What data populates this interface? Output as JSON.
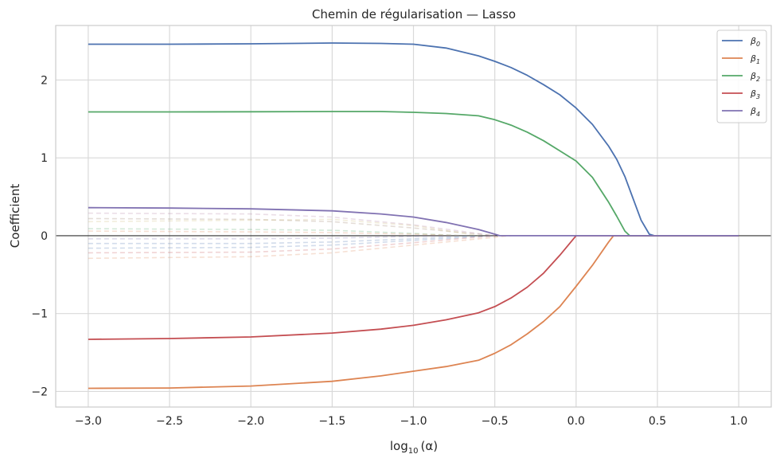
{
  "chart_data": {
    "type": "line",
    "title": "Chemin de régularisation — Lasso",
    "xlabel": "log",
    "xlabel_sub": "10",
    "xlabel_tail": "(α)",
    "ylabel": "Coefficient",
    "xlim": [
      -3.2,
      1.2
    ],
    "ylim": [
      -2.2,
      2.7
    ],
    "xticks": [
      -3.0,
      -2.5,
      -2.0,
      -1.5,
      -1.0,
      -0.5,
      0.0,
      0.5,
      1.0
    ],
    "xtick_labels": [
      "−3.0",
      "−2.5",
      "−2.0",
      "−1.5",
      "−1.0",
      "−0.5",
      "0.0",
      "0.5",
      "1.0"
    ],
    "yticks": [
      -2,
      -1,
      0,
      1,
      2
    ],
    "ytick_labels": [
      "−2",
      "−1",
      "0",
      "1",
      "2"
    ],
    "grid": true,
    "legend_position": "top-right",
    "zero_line": true,
    "series": [
      {
        "name": "β",
        "sub": "0",
        "color": "#4c72b0",
        "x": [
          -3.0,
          -2.5,
          -2.0,
          -1.5,
          -1.2,
          -1.0,
          -0.8,
          -0.6,
          -0.5,
          -0.4,
          -0.3,
          -0.2,
          -0.1,
          0.0,
          0.1,
          0.2,
          0.25,
          0.3,
          0.35,
          0.4,
          0.45,
          0.48,
          1.0
        ],
        "y": [
          2.46,
          2.46,
          2.465,
          2.475,
          2.47,
          2.46,
          2.41,
          2.31,
          2.24,
          2.16,
          2.06,
          1.94,
          1.81,
          1.64,
          1.43,
          1.15,
          0.98,
          0.76,
          0.48,
          0.2,
          0.02,
          0.0,
          0.0
        ]
      },
      {
        "name": "β",
        "sub": "1",
        "color": "#dd8452",
        "x": [
          -3.0,
          -2.5,
          -2.0,
          -1.5,
          -1.2,
          -1.0,
          -0.8,
          -0.6,
          -0.5,
          -0.4,
          -0.3,
          -0.2,
          -0.1,
          0.0,
          0.1,
          0.2,
          0.23,
          1.0
        ],
        "y": [
          -1.96,
          -1.955,
          -1.93,
          -1.87,
          -1.8,
          -1.74,
          -1.68,
          -1.6,
          -1.51,
          -1.4,
          -1.26,
          -1.1,
          -0.91,
          -0.65,
          -0.38,
          -0.08,
          0.0,
          0.0
        ]
      },
      {
        "name": "β",
        "sub": "2",
        "color": "#55a868",
        "x": [
          -3.0,
          -2.5,
          -2.0,
          -1.5,
          -1.2,
          -1.0,
          -0.8,
          -0.6,
          -0.5,
          -0.4,
          -0.3,
          -0.2,
          -0.1,
          0.0,
          0.1,
          0.2,
          0.25,
          0.3,
          0.33,
          1.0
        ],
        "y": [
          1.59,
          1.59,
          1.592,
          1.595,
          1.595,
          1.585,
          1.57,
          1.54,
          1.49,
          1.42,
          1.33,
          1.22,
          1.09,
          0.96,
          0.75,
          0.43,
          0.25,
          0.06,
          0.0,
          0.0
        ]
      },
      {
        "name": "β",
        "sub": "3",
        "color": "#c44e52",
        "x": [
          -3.0,
          -2.5,
          -2.0,
          -1.5,
          -1.2,
          -1.0,
          -0.8,
          -0.6,
          -0.5,
          -0.4,
          -0.3,
          -0.2,
          -0.1,
          0.0,
          1.0
        ],
        "y": [
          -1.33,
          -1.32,
          -1.3,
          -1.25,
          -1.2,
          -1.15,
          -1.08,
          -0.99,
          -0.91,
          -0.8,
          -0.66,
          -0.48,
          -0.25,
          0.0,
          0.0
        ]
      },
      {
        "name": "β",
        "sub": "4",
        "color": "#8172b2",
        "x": [
          -3.0,
          -2.5,
          -2.0,
          -1.5,
          -1.2,
          -1.0,
          -0.8,
          -0.6,
          -0.5,
          -0.47,
          1.0
        ],
        "y": [
          0.36,
          0.355,
          0.345,
          0.32,
          0.28,
          0.24,
          0.17,
          0.08,
          0.02,
          0.0,
          0.0
        ]
      }
    ],
    "faint_series": [
      {
        "color": "#b07aa1",
        "x": [
          -3.0,
          -2.0,
          -1.5,
          -1.0,
          -0.5
        ],
        "y": [
          0.29,
          0.28,
          0.24,
          0.14,
          0.0
        ]
      },
      {
        "color": "#937860",
        "x": [
          -3.0,
          -2.0,
          -1.5,
          -1.0,
          -0.5
        ],
        "y": [
          0.22,
          0.21,
          0.18,
          0.1,
          0.0
        ]
      },
      {
        "color": "#ccb974",
        "x": [
          -3.0,
          -2.0,
          -1.5,
          -1.0,
          -0.6
        ],
        "y": [
          0.18,
          0.2,
          0.21,
          0.13,
          0.0
        ]
      },
      {
        "color": "#55a868",
        "x": [
          -3.0,
          -2.0,
          -1.5,
          -1.0,
          -0.7
        ],
        "y": [
          0.09,
          0.08,
          0.07,
          0.03,
          0.0
        ]
      },
      {
        "color": "#dd8452",
        "x": [
          -3.0,
          -2.0,
          -1.5,
          -1.0,
          -0.7
        ],
        "y": [
          0.06,
          0.05,
          0.04,
          0.02,
          0.0
        ]
      },
      {
        "color": "#8172b2",
        "x": [
          -3.0,
          -2.0,
          -1.5,
          -1.0,
          -0.7
        ],
        "y": [
          -0.04,
          -0.04,
          -0.03,
          -0.01,
          0.0
        ]
      },
      {
        "color": "#4c72b0",
        "x": [
          -3.0,
          -2.0,
          -1.5,
          -1.0,
          -0.6
        ],
        "y": [
          -0.1,
          -0.1,
          -0.08,
          -0.04,
          0.0
        ]
      },
      {
        "color": "#4c72b0",
        "x": [
          -3.0,
          -2.0,
          -1.5,
          -1.0,
          -0.5
        ],
        "y": [
          -0.16,
          -0.15,
          -0.12,
          -0.06,
          0.0
        ]
      },
      {
        "color": "#c44e52",
        "x": [
          -3.0,
          -2.0,
          -1.5,
          -1.0,
          -0.5
        ],
        "y": [
          -0.22,
          -0.21,
          -0.17,
          -0.09,
          0.0
        ]
      },
      {
        "color": "#dd8452",
        "x": [
          -3.0,
          -2.0,
          -1.5,
          -1.0,
          -0.4
        ],
        "y": [
          -0.29,
          -0.27,
          -0.22,
          -0.12,
          0.0
        ]
      }
    ]
  }
}
